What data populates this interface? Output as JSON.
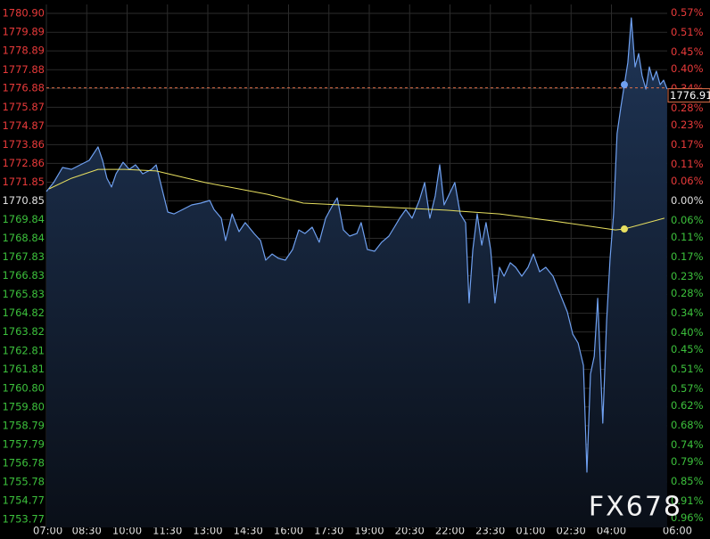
{
  "chart_data": {
    "type": "line",
    "watermark": "FX678",
    "xlim": [
      0,
      24
    ],
    "xticks": [
      {
        "value": 0,
        "label": "07:00"
      },
      {
        "value": 1.5,
        "label": "08:30"
      },
      {
        "value": 3,
        "label": "10:00"
      },
      {
        "value": 4.5,
        "label": "11:30"
      },
      {
        "value": 6,
        "label": "13:00"
      },
      {
        "value": 7.5,
        "label": "14:30"
      },
      {
        "value": 9,
        "label": "16:00"
      },
      {
        "value": 10.5,
        "label": "17:30"
      },
      {
        "value": 12,
        "label": "19:00"
      },
      {
        "value": 13.5,
        "label": "20:30"
      },
      {
        "value": 15,
        "label": "22:00"
      },
      {
        "value": 16.5,
        "label": "23:30"
      },
      {
        "value": 18,
        "label": "01:00"
      },
      {
        "value": 19.5,
        "label": "02:30"
      },
      {
        "value": 21,
        "label": "04:00"
      },
      {
        "value": 24,
        "label": "06:00"
      }
    ],
    "ylim": [
      1753.34,
      1781.38
    ],
    "yticks": [
      {
        "value": 1780.9,
        "label": "1780.90"
      },
      1779.89,
      1778.89,
      1777.88,
      1776.88,
      1775.87,
      1774.87,
      1773.86,
      1772.86,
      1771.85,
      1770.85,
      1769.84,
      1768.84,
      1767.83,
      1766.83,
      1765.83,
      1764.82,
      1763.82,
      1762.81,
      1761.81,
      {
        "value": 1760.8,
        "label": "1760.80"
      },
      {
        "value": 1759.8,
        "label": "1759.80"
      },
      1758.79,
      1757.79,
      1756.78,
      1755.78,
      1754.77,
      1753.77
    ],
    "y2lim": [
      -0.989,
      0.595
    ],
    "y2ticks": [
      {
        "value": 0.57,
        "label": "0.57%"
      },
      {
        "value": 0.51,
        "label": "0.51%"
      },
      {
        "value": 0.45,
        "label": "0.45%"
      },
      {
        "value": 0.4,
        "label": "0.40%"
      },
      {
        "value": 0.34,
        "label": "0.34%"
      },
      {
        "value": 0.28,
        "label": "0.28%"
      },
      {
        "value": 0.23,
        "label": "0.23%"
      },
      {
        "value": 0.17,
        "label": "0.17%"
      },
      {
        "value": 0.11,
        "label": "0.11%"
      },
      {
        "value": 0.06,
        "label": "0.06%"
      },
      {
        "value": 0,
        "label": "0.00%"
      },
      {
        "value": -0.06,
        "label": "0.06%"
      },
      {
        "value": -0.11,
        "label": "0.11%"
      },
      {
        "value": -0.17,
        "label": "0.17%"
      },
      {
        "value": -0.23,
        "label": "0.23%"
      },
      {
        "value": -0.28,
        "label": "0.28%"
      },
      {
        "value": -0.34,
        "label": "0.34%"
      },
      {
        "value": -0.4,
        "label": "0.40%"
      },
      {
        "value": -0.45,
        "label": "0.45%"
      },
      {
        "value": -0.51,
        "label": "0.51%"
      },
      {
        "value": -0.57,
        "label": "0.57%"
      },
      {
        "value": -0.62,
        "label": "0.62%"
      },
      {
        "value": -0.68,
        "label": "0.68%"
      },
      {
        "value": -0.74,
        "label": "0.74%"
      },
      {
        "value": -0.79,
        "label": "0.79%"
      },
      {
        "value": -0.85,
        "label": "0.85%"
      },
      {
        "value": -0.91,
        "label": "0.91%"
      },
      {
        "value": -0.96,
        "label": "0.96%"
      }
    ],
    "grid": true,
    "up_color": "#e83a3a",
    "down_color": "#3cc03c",
    "flat_color": "#e0e0e0",
    "last_price": 1776.91,
    "series": [
      {
        "color": "#6fa0f0",
        "area": true,
        "x": [
          0,
          0.27,
          0.6,
          0.93,
          1.26,
          1.59,
          1.92,
          2.09,
          2.25,
          2.42,
          2.59,
          2.85,
          3.08,
          3.31,
          3.58,
          3.91,
          4.08,
          4.24,
          4.51,
          4.74,
          5.07,
          5.4,
          5.73,
          6.07,
          6.23,
          6.5,
          6.66,
          6.9,
          7.16,
          7.39,
          7.72,
          7.96,
          8.15,
          8.39,
          8.62,
          8.88,
          9.15,
          9.38,
          9.61,
          9.88,
          10.14,
          10.38,
          10.61,
          10.81,
          11.04,
          11.27,
          11.54,
          11.7,
          11.93,
          12.2,
          12.46,
          12.73,
          12.93,
          13.13,
          13.36,
          13.59,
          13.86,
          14.06,
          14.25,
          14.45,
          14.62,
          14.78,
          15.02,
          15.18,
          15.38,
          15.58,
          15.71,
          15.85,
          16.01,
          16.18,
          16.34,
          16.51,
          16.67,
          16.84,
          17.01,
          17.24,
          17.44,
          17.67,
          17.9,
          18.1,
          18.33,
          18.56,
          18.83,
          19.09,
          19.36,
          19.56,
          19.76,
          19.96,
          20.09,
          20.22,
          20.36,
          20.49,
          20.68,
          20.82,
          20.95,
          21.08,
          21.21,
          21.35,
          21.48,
          21.61,
          21.74,
          21.88,
          22.01,
          22.14,
          22.28,
          22.41,
          22.54,
          22.67,
          22.81,
          22.94,
          23.07
        ],
        "values": [
          1771.35,
          1771.83,
          1772.64,
          1772.54,
          1772.78,
          1773.02,
          1773.74,
          1773.02,
          1772.06,
          1771.59,
          1772.3,
          1772.92,
          1772.54,
          1772.78,
          1772.3,
          1772.54,
          1772.78,
          1771.83,
          1770.25,
          1770.15,
          1770.39,
          1770.63,
          1770.73,
          1770.87,
          1770.39,
          1769.92,
          1768.72,
          1770.15,
          1769.2,
          1769.68,
          1769.1,
          1768.72,
          1767.67,
          1768.0,
          1767.77,
          1767.67,
          1768.24,
          1769.29,
          1769.1,
          1769.44,
          1768.63,
          1769.92,
          1770.54,
          1771.01,
          1769.29,
          1768.96,
          1769.1,
          1769.68,
          1768.24,
          1768.15,
          1768.63,
          1768.96,
          1769.44,
          1769.92,
          1770.39,
          1769.92,
          1770.87,
          1771.83,
          1769.92,
          1771.11,
          1772.78,
          1770.63,
          1771.35,
          1771.83,
          1770.15,
          1769.68,
          1765.38,
          1768.24,
          1770.15,
          1768.48,
          1769.68,
          1768.24,
          1765.38,
          1767.29,
          1766.81,
          1767.53,
          1767.29,
          1766.81,
          1767.29,
          1768.0,
          1767.05,
          1767.29,
          1766.81,
          1765.86,
          1764.9,
          1763.71,
          1763.23,
          1762.03,
          1756.3,
          1761.56,
          1762.51,
          1765.62,
          1758.93,
          1764.42,
          1767.77,
          1770.15,
          1774.45,
          1775.89,
          1777.08,
          1778.27,
          1780.66,
          1778.03,
          1778.75,
          1777.56,
          1776.84,
          1778.03,
          1777.32,
          1777.8,
          1777.08,
          1777.32,
          1776.84
        ]
      },
      {
        "color": "#e8e060",
        "area": false,
        "x": [
          0.1,
          0.93,
          1.92,
          2.92,
          4.08,
          5.9,
          8.22,
          9.55,
          12.2,
          14.85,
          16.84,
          18.83,
          21.15,
          21.48,
          22.97
        ],
        "values": [
          1771.49,
          1772.06,
          1772.54,
          1772.54,
          1772.45,
          1771.83,
          1771.2,
          1770.73,
          1770.54,
          1770.35,
          1770.15,
          1769.77,
          1769.29,
          1769.34,
          1769.92
        ]
      }
    ],
    "markers": [
      {
        "series": 1,
        "index": 13
      },
      {
        "series": 0,
        "index": 98
      }
    ]
  }
}
